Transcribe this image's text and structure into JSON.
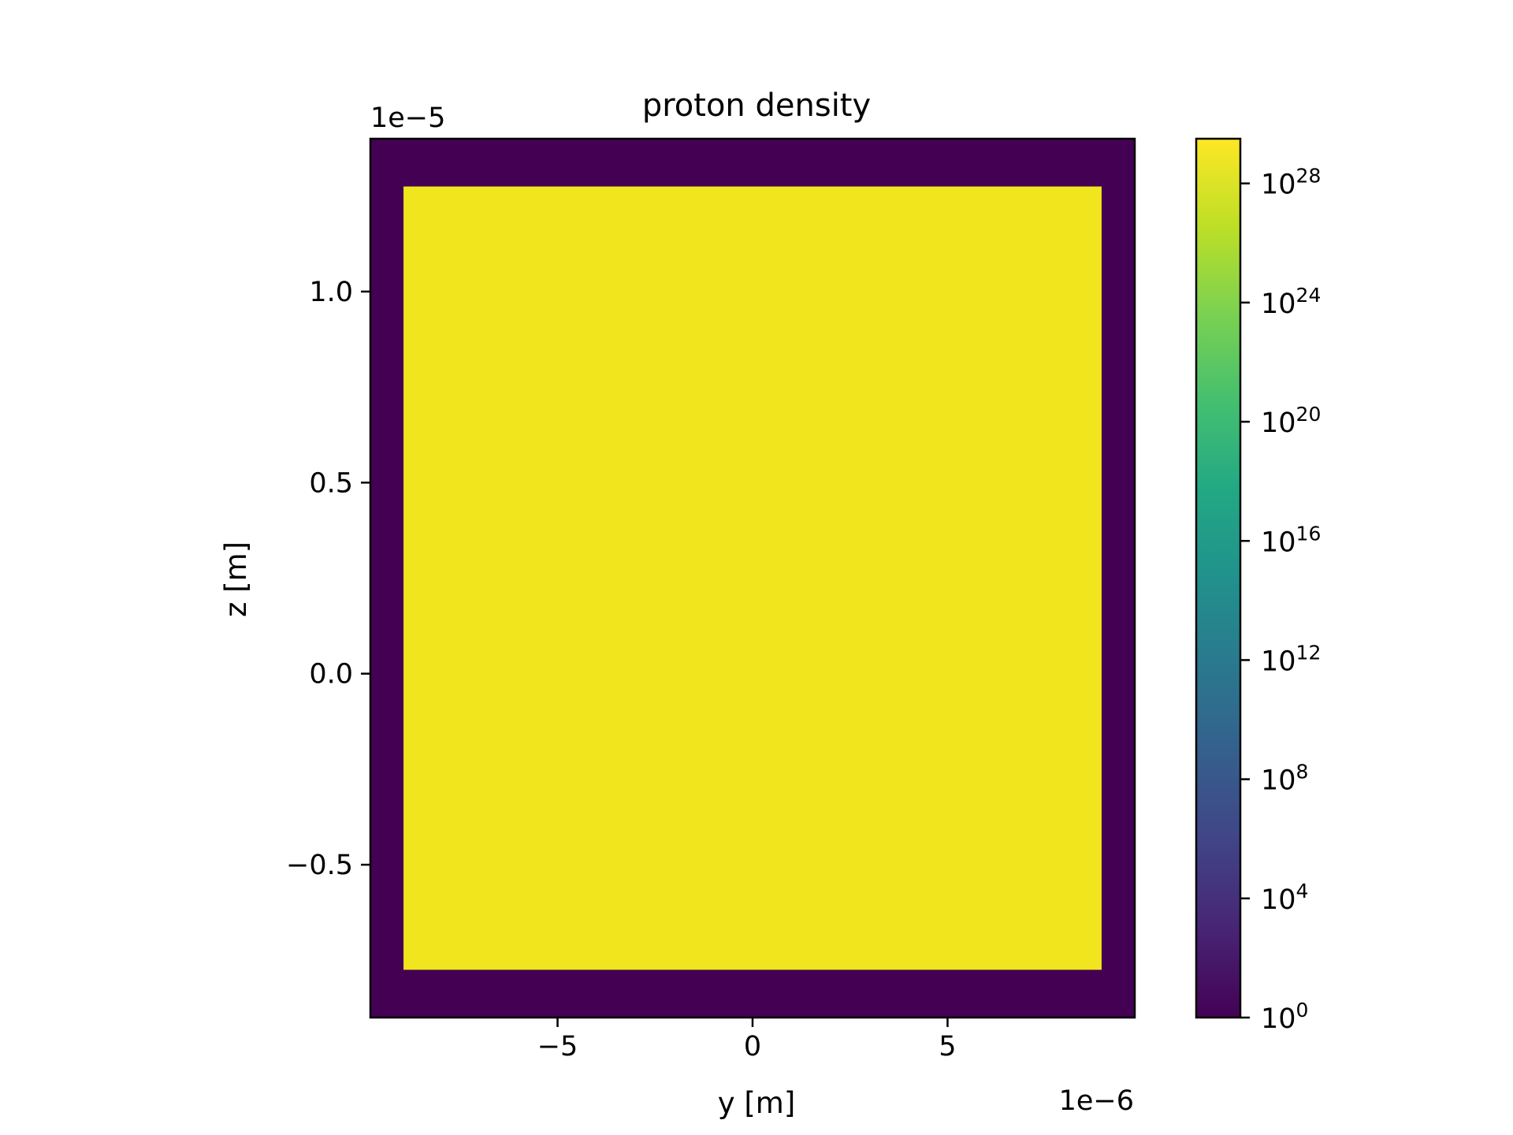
{
  "chart_data": {
    "type": "heatmap",
    "title": "proton density",
    "xlabel": "y [m]",
    "ylabel": "z [m]",
    "x_offset_text": "1e−6",
    "y_offset_text": "1e−5",
    "xlim": [
      -9.8,
      9.8
    ],
    "ylim": [
      -0.9,
      1.4
    ],
    "x_scale_factor": 1e-06,
    "y_scale_factor": 1e-05,
    "x_ticks": [
      {
        "value": -5,
        "label": "−5"
      },
      {
        "value": 0,
        "label": "0"
      },
      {
        "value": 5,
        "label": "5"
      }
    ],
    "y_ticks": [
      {
        "value": -0.5,
        "label": "−0.5"
      },
      {
        "value": 0.0,
        "label": "0.0"
      },
      {
        "value": 0.5,
        "label": "0.5"
      },
      {
        "value": 1.0,
        "label": "1.0"
      }
    ],
    "background_value": 1,
    "regions": [
      {
        "x_range": [
          -8.95,
          8.95
        ],
        "z_range": [
          -0.775,
          1.275
        ],
        "value": 1e+29
      }
    ],
    "grid": false,
    "colorbar": {
      "scale": "log",
      "colormap": "viridis",
      "min_exponent": 0,
      "max_exponent": 29.5,
      "ticks": [
        {
          "base": "10",
          "exp": "0",
          "exponent": 0
        },
        {
          "base": "10",
          "exp": "4",
          "exponent": 4
        },
        {
          "base": "10",
          "exp": "8",
          "exponent": 8
        },
        {
          "base": "10",
          "exp": "12",
          "exponent": 12
        },
        {
          "base": "10",
          "exp": "16",
          "exponent": 16
        },
        {
          "base": "10",
          "exp": "20",
          "exponent": 20
        },
        {
          "base": "10",
          "exp": "24",
          "exponent": 24
        },
        {
          "base": "10",
          "exp": "28",
          "exponent": 28
        }
      ]
    },
    "colors": {
      "low": "#440154",
      "high": "#f1e51d"
    }
  }
}
